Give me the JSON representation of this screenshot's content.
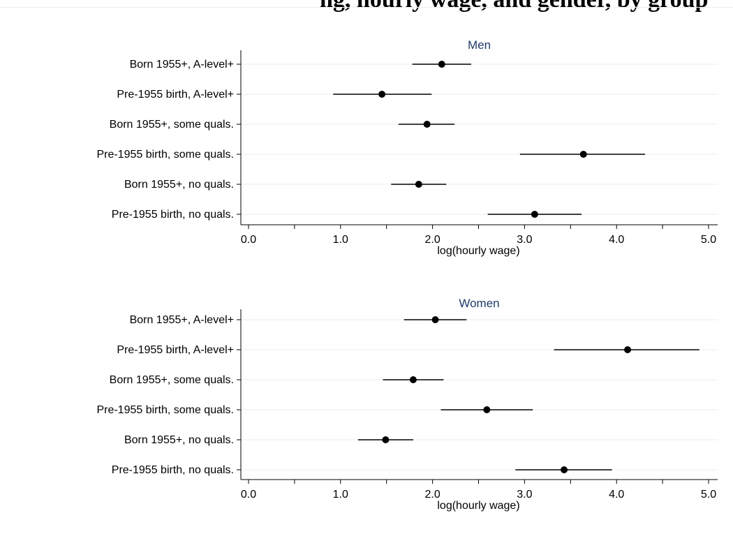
{
  "title": "ng, hourly wage, and gender, by group",
  "chart_data": [
    {
      "type": "dot-with-error-bars",
      "panel_title": "Men",
      "xlabel": "log(hourly wage)",
      "xlim": [
        0.0,
        5.0
      ],
      "xticks": [
        "0.0",
        "1.0",
        "2.0",
        "3.0",
        "4.0",
        "5.0"
      ],
      "grid": "horizontal",
      "categories": [
        "Born 1955+, A-level+",
        "Pre-1955 birth, A-level+",
        "Born 1955+, some quals.",
        "Pre-1955 birth, some quals.",
        "Born 1955+, no quals.",
        "Pre-1955 birth, no quals."
      ],
      "values": [
        2.1,
        1.45,
        1.94,
        3.64,
        1.85,
        3.11
      ],
      "ci_low": [
        1.78,
        0.92,
        1.63,
        2.95,
        1.55,
        2.6
      ],
      "ci_high": [
        2.42,
        1.99,
        2.24,
        4.31,
        2.15,
        3.62
      ]
    },
    {
      "type": "dot-with-error-bars",
      "panel_title": "Women",
      "xlabel": "log(hourly wage)",
      "xlim": [
        0.0,
        5.0
      ],
      "xticks": [
        "0.0",
        "1.0",
        "2.0",
        "3.0",
        "4.0",
        "5.0"
      ],
      "grid": "horizontal",
      "categories": [
        "Born 1955+, A-level+",
        "Pre-1955 birth, A-level+",
        "Born 1955+, some quals.",
        "Pre-1955 birth, some quals.",
        "Born 1955+, no quals.",
        "Pre-1955 birth, no quals."
      ],
      "values": [
        2.03,
        4.12,
        1.79,
        2.59,
        1.49,
        3.43
      ],
      "ci_low": [
        1.69,
        3.32,
        1.46,
        2.09,
        1.19,
        2.9
      ],
      "ci_high": [
        2.37,
        4.9,
        2.12,
        3.09,
        1.79,
        3.95
      ]
    }
  ]
}
